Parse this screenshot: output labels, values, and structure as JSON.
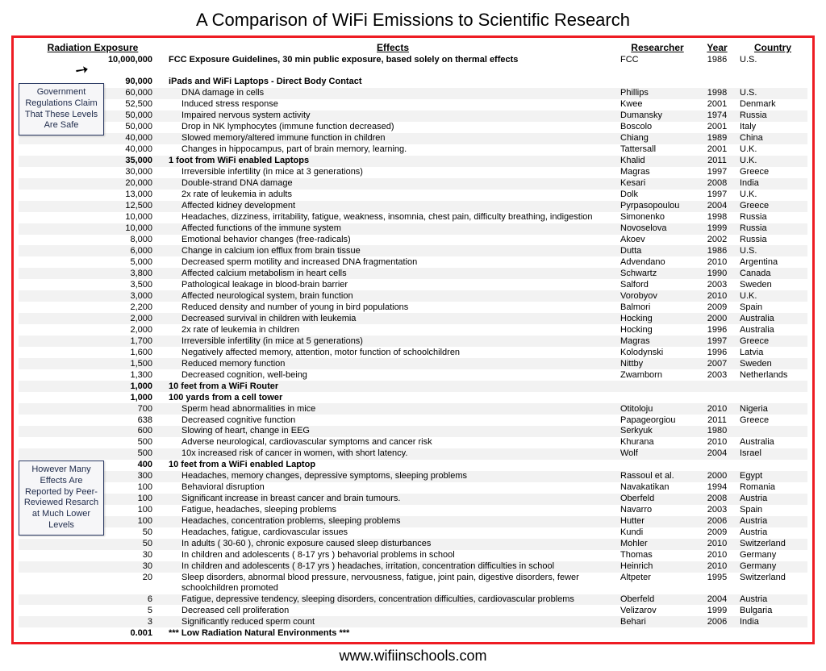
{
  "title": "A Comparison of WiFi Emissions to Scientific Research",
  "footer": "www.wifiinschools.com",
  "columns": {
    "exposure": "Radiation Exposure",
    "effects": "Effects",
    "researcher": "Researcher",
    "year": "Year",
    "country": "Country"
  },
  "callout1": "Government Regulations Claim That These Levels Are Safe",
  "callout2": "However Many Effects Are Reported by Peer-Reviewed Resarch at Much Lower Levels",
  "rows": [
    {
      "exposure": "10,000,000",
      "effects": "FCC Exposure Guidelines, 30 min public exposure, based solely on thermal effects",
      "researcher": "FCC",
      "year": "1986",
      "country": "U.S.",
      "bold": true,
      "noindent": true
    },
    {
      "blank": true
    },
    {
      "exposure": "90,000",
      "effects": "iPads and WiFi Laptops - Direct Body Contact",
      "bold": true,
      "noindent": true
    },
    {
      "exposure": "60,000",
      "effects": "DNA damage in cells",
      "researcher": "Phillips",
      "year": "1998",
      "country": "U.S.",
      "alt": true
    },
    {
      "exposure": "52,500",
      "effects": "Induced stress response",
      "researcher": "Kwee",
      "year": "2001",
      "country": "Denmark"
    },
    {
      "exposure": "50,000",
      "effects": "Impaired nervous system activity",
      "researcher": "Dumansky",
      "year": "1974",
      "country": "Russia",
      "alt": true
    },
    {
      "exposure": "50,000",
      "effects": "Drop in NK lymphocytes (immune function decreased)",
      "researcher": "Boscolo",
      "year": "2001",
      "country": "Italy"
    },
    {
      "exposure": "40,000",
      "effects": "Slowed memory/altered immune function in children",
      "researcher": "Chiang",
      "year": "1989",
      "country": "China",
      "alt": true
    },
    {
      "exposure": "40,000",
      "effects": "Changes in hippocampus, part of brain memory, learning.",
      "researcher": "Tattersall",
      "year": "2001",
      "country": "U.K."
    },
    {
      "exposure": "35,000",
      "effects": "1 foot from WiFi enabled Laptops",
      "researcher": "Khalid",
      "year": "2011",
      "country": "U.K.",
      "bold": true,
      "noindent": true,
      "alt": true
    },
    {
      "exposure": "30,000",
      "effects": "Irreversible infertility (in mice at 3 generations)",
      "researcher": "Magras",
      "year": "1997",
      "country": "Greece"
    },
    {
      "exposure": "20,000",
      "effects": "Double-strand DNA damage",
      "researcher": "Kesari",
      "year": "2008",
      "country": "India",
      "alt": true
    },
    {
      "exposure": "13,000",
      "effects": "2x rate of leukemia in adults",
      "researcher": "Dolk",
      "year": "1997",
      "country": "U.K."
    },
    {
      "exposure": "12,500",
      "effects": "Affected kidney development",
      "researcher": "Pyrpasopoulou",
      "year": "2004",
      "country": "Greece",
      "alt": true
    },
    {
      "exposure": "10,000",
      "effects": "Headaches, dizziness, irritability, fatigue, weakness, insomnia, chest pain, difficulty breathing, indigestion",
      "researcher": "Simonenko",
      "year": "1998",
      "country": "Russia"
    },
    {
      "exposure": "10,000",
      "effects": "Affected functions of the immune system",
      "researcher": "Novoselova",
      "year": "1999",
      "country": "Russia",
      "alt": true
    },
    {
      "exposure": "8,000",
      "effects": "Emotional behavior changes (free-radicals)",
      "researcher": "Akoev",
      "year": "2002",
      "country": "Russia"
    },
    {
      "exposure": "6,000",
      "effects": "Change in calcium ion efflux from brain tissue",
      "researcher": "Dutta",
      "year": "1986",
      "country": "U.S.",
      "alt": true
    },
    {
      "exposure": "5,000",
      "effects": "Decreased sperm motility and increased DNA fragmentation",
      "researcher": "Advendano",
      "year": "2010",
      "country": "Argentina"
    },
    {
      "exposure": "3,800",
      "effects": "Affected calcium metabolism in heart cells",
      "researcher": "Schwartz",
      "year": "1990",
      "country": "Canada",
      "alt": true
    },
    {
      "exposure": "3,500",
      "effects": "Pathological leakage in blood-brain barrier",
      "researcher": "Salford",
      "year": "2003",
      "country": "Sweden"
    },
    {
      "exposure": "3,000",
      "effects": "Affected neurological system, brain function",
      "researcher": "Vorobyov",
      "year": "2010",
      "country": "U.K.",
      "alt": true
    },
    {
      "exposure": "2,200",
      "effects": "Reduced density and number of young in bird populations",
      "researcher": "Balmori",
      "year": "2009",
      "country": "Spain"
    },
    {
      "exposure": "2,000",
      "effects": "Decreased survival in children with leukemia",
      "researcher": "Hocking",
      "year": "2000",
      "country": "Australia",
      "alt": true
    },
    {
      "exposure": "2,000",
      "effects": "2x rate of leukemia in children",
      "researcher": "Hocking",
      "year": "1996",
      "country": "Australia"
    },
    {
      "exposure": "1,700",
      "effects": "Irreversible infertility (in mice at 5 generations)",
      "researcher": "Magras",
      "year": "1997",
      "country": "Greece",
      "alt": true
    },
    {
      "exposure": "1,600",
      "effects": "Negatively affected memory, attention, motor function of schoolchildren",
      "researcher": "Kolodynski",
      "year": "1996",
      "country": "Latvia"
    },
    {
      "exposure": "1,500",
      "effects": "Reduced memory function",
      "researcher": "Nittby",
      "year": "2007",
      "country": "Sweden",
      "alt": true
    },
    {
      "exposure": "1,300",
      "effects": "Decreased cognition, well-being",
      "researcher": "Zwamborn",
      "year": "2003",
      "country": "Netherlands"
    },
    {
      "exposure": "1,000",
      "effects": "10 feet from a WiFi Router",
      "bold": true,
      "noindent": true,
      "alt": true
    },
    {
      "exposure": "1,000",
      "effects": "100 yards from a cell tower",
      "bold": true,
      "noindent": true
    },
    {
      "exposure": "700",
      "effects": "Sperm head abnormalities in mice",
      "researcher": "Otitoloju",
      "year": "2010",
      "country": "Nigeria",
      "alt": true
    },
    {
      "exposure": "638",
      "effects": "Decreased cognitive function",
      "researcher": "Papageorgiou",
      "year": "2011",
      "country": "Greece"
    },
    {
      "exposure": "600",
      "effects": "Slowing of heart, change in EEG",
      "researcher": "Serkyuk",
      "year": "1980",
      "alt": true
    },
    {
      "exposure": "500",
      "effects": "Adverse neurological, cardiovascular symptoms and cancer risk",
      "researcher": "Khurana",
      "year": "2010",
      "country": "Australia"
    },
    {
      "exposure": "500",
      "effects": "10x increased risk of cancer in women, with short latency.",
      "researcher": "Wolf",
      "year": "2004",
      "country": "Israel",
      "alt": true
    },
    {
      "exposure": "400",
      "effects": "10 feet from a WiFi enabled Laptop",
      "bold": true,
      "noindent": true
    },
    {
      "exposure": "300",
      "effects": "Headaches, memory changes, depressive symptoms, sleeping problems",
      "researcher": "Rassoul et al.",
      "year": "2000",
      "country": "Egypt",
      "alt": true
    },
    {
      "exposure": "100",
      "effects": "Behavioral disruption",
      "researcher": "Navakatikan",
      "year": "1994",
      "country": "Romania"
    },
    {
      "exposure": "100",
      "effects": "Significant increase in breast cancer and brain tumours.",
      "researcher": "Oberfeld",
      "year": "2008",
      "country": "Austria",
      "alt": true
    },
    {
      "exposure": "100",
      "effects": "Fatigue, headaches, sleeping problems",
      "researcher": "Navarro",
      "year": "2003",
      "country": "Spain"
    },
    {
      "exposure": "100",
      "effects": "Headaches, concentration problems, sleeping problems",
      "researcher": "Hutter",
      "year": "2006",
      "country": "Austria",
      "alt": true
    },
    {
      "exposure": "50",
      "effects": "Headaches, fatigue, cardiovascular issues",
      "researcher": "Kundi",
      "year": "2009",
      "country": "Austria"
    },
    {
      "exposure": "50",
      "effects": "In adults ( 30-60 ), chronic exposure caused sleep disturbances",
      "researcher": "Mohler",
      "year": "2010",
      "country": "Switzerland",
      "alt": true
    },
    {
      "exposure": "30",
      "effects": "In children and adolescents ( 8-17 yrs ) behavorial problems in school",
      "researcher": "Thomas",
      "year": "2010",
      "country": "Germany"
    },
    {
      "exposure": "30",
      "effects": "In children and adolescents ( 8-17 yrs ) headaches, irritation, concentration difficulties in school",
      "researcher": "Heinrich",
      "year": "2010",
      "country": "Germany",
      "alt": true
    },
    {
      "exposure": "20",
      "effects": "Sleep disorders, abnormal blood pressure, nervousness, fatigue, joint pain, digestive disorders, fewer schoolchildren promoted",
      "researcher": "Altpeter",
      "year": "1995",
      "country": "Switzerland"
    },
    {
      "exposure": "6",
      "effects": "Fatigue, depressive tendency, sleeping disorders, concentration difficulties, cardiovascular problems",
      "researcher": "Oberfeld",
      "year": "2004",
      "country": "Austria",
      "alt": true
    },
    {
      "exposure": "5",
      "effects": "Decreased cell proliferation",
      "researcher": "Velizarov",
      "year": "1999",
      "country": "Bulgaria"
    },
    {
      "exposure": "3",
      "effects": "Significantly reduced sperm count",
      "researcher": "Behari",
      "year": "2006",
      "country": "India",
      "alt": true
    },
    {
      "exposure": "0.001",
      "effects": "*** Low Radiation Natural Environments ***",
      "bold": true,
      "noindent": true
    }
  ]
}
